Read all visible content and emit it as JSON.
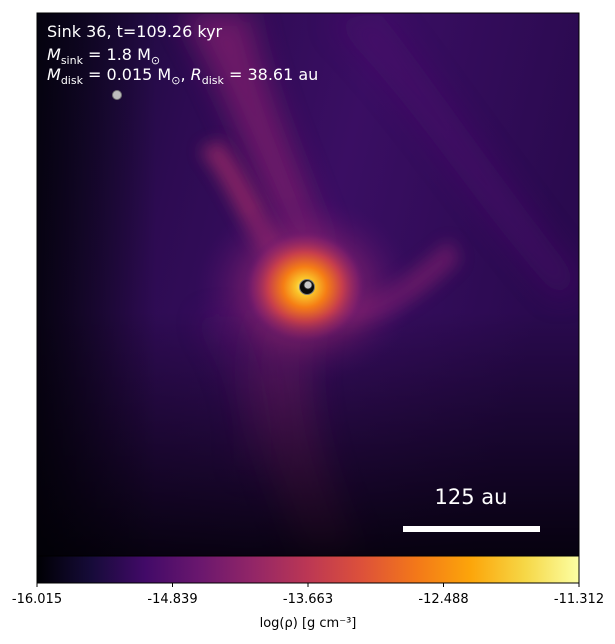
{
  "panel": {
    "title_line1": "Sink 36, t=109.26 kyr",
    "sink_mass_label": "M",
    "sink_mass_sub": "sink",
    "sink_mass_value": " = 1.8 M",
    "sink_mass_unit_sub": "⊙",
    "disk_mass_label": "M",
    "disk_mass_sub": "disk",
    "disk_mass_value": " = 0.015 M",
    "disk_mass_unit_sub": "⊙",
    "disk_radius_sep": ", ",
    "disk_radius_label": "R",
    "disk_radius_sub": "disk",
    "disk_radius_value": " = 38.61 au",
    "scalebar_label": "125 au"
  },
  "colorbar": {
    "label": "log(ρ) [g cm⁻³]",
    "ticks": [
      "-16.015",
      "-14.839",
      "-13.663",
      "-12.488",
      "-11.312"
    ],
    "vmin": -16.015,
    "vmax": -11.312,
    "colormap": "inferno"
  }
}
